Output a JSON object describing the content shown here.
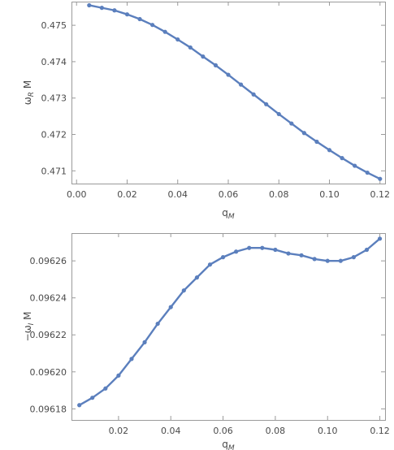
{
  "colors": {
    "series": "#5b7fbd",
    "frame": "#9a9a9a",
    "text": "#4a4a4a"
  },
  "chart_data": [
    {
      "type": "line",
      "title": "",
      "xlabel": {
        "base": "q",
        "sub": "M"
      },
      "ylabel": {
        "base": "ω",
        "sub": "R",
        "suffix": " M"
      },
      "xlim": [
        -0.002,
        0.122
      ],
      "ylim": [
        0.47065,
        0.47565
      ],
      "xticks": [
        0.0,
        0.02,
        0.04,
        0.06,
        0.08,
        0.1,
        0.12
      ],
      "xtick_labels": [
        "0.00",
        "0.02",
        "0.04",
        "0.06",
        "0.08",
        "0.10",
        "0.12"
      ],
      "yticks": [
        0.471,
        0.472,
        0.473,
        0.474,
        0.475
      ],
      "ytick_labels": [
        "0.471",
        "0.472",
        "0.473",
        "0.474",
        "0.475"
      ],
      "grid": false,
      "markers": true,
      "series": [
        {
          "x": [
            0.005,
            0.01,
            0.015,
            0.02,
            0.025,
            0.03,
            0.035,
            0.04,
            0.045,
            0.05,
            0.055,
            0.06,
            0.065,
            0.07,
            0.075,
            0.08,
            0.085,
            0.09,
            0.095,
            0.1,
            0.105,
            0.11,
            0.115,
            0.12
          ],
          "y": [
            0.47555,
            0.47548,
            0.47541,
            0.4753,
            0.47517,
            0.47501,
            0.47482,
            0.47461,
            0.47439,
            0.47414,
            0.4739,
            0.47364,
            0.47337,
            0.4731,
            0.47283,
            0.47256,
            0.4723,
            0.47204,
            0.4718,
            0.47157,
            0.47135,
            0.47114,
            0.47095,
            0.47078
          ]
        }
      ]
    },
    {
      "type": "line",
      "title": "",
      "xlabel": {
        "base": "q",
        "sub": "M"
      },
      "ylabel": {
        "base": "−ω",
        "sub": "I",
        "suffix": " M"
      },
      "xlim": [
        0.002,
        0.122
      ],
      "ylim": [
        0.096174,
        0.096275
      ],
      "xticks": [
        0.02,
        0.04,
        0.06,
        0.08,
        0.1,
        0.12
      ],
      "xtick_labels": [
        "0.02",
        "0.04",
        "0.06",
        "0.08",
        "0.10",
        "0.12"
      ],
      "yticks": [
        0.09618,
        0.0962,
        0.09622,
        0.09624,
        0.09626
      ],
      "ytick_labels": [
        "0.09618",
        "0.09620",
        "0.09622",
        "0.09624",
        "0.09626"
      ],
      "grid": false,
      "markers": true,
      "series": [
        {
          "x": [
            0.005,
            0.01,
            0.015,
            0.02,
            0.025,
            0.03,
            0.035,
            0.04,
            0.045,
            0.05,
            0.055,
            0.06,
            0.065,
            0.07,
            0.075,
            0.08,
            0.085,
            0.09,
            0.095,
            0.1,
            0.105,
            0.11,
            0.115,
            0.12
          ],
          "y": [
            0.096182,
            0.096186,
            0.096191,
            0.096198,
            0.096207,
            0.096216,
            0.096226,
            0.096235,
            0.096244,
            0.096251,
            0.096258,
            0.096262,
            0.096265,
            0.096267,
            0.096267,
            0.096266,
            0.096264,
            0.096263,
            0.096261,
            0.09626,
            0.09626,
            0.096262,
            0.096266,
            0.096272
          ]
        }
      ]
    }
  ]
}
